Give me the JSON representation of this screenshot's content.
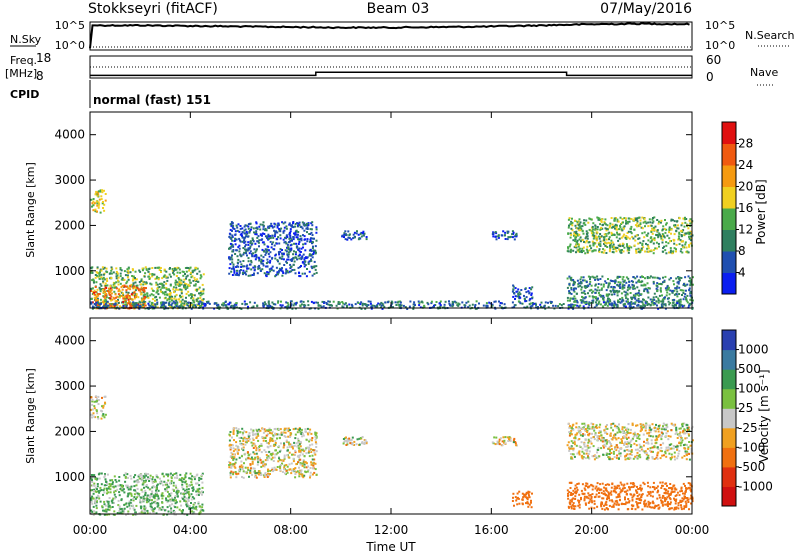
{
  "header": {
    "station": "Stokkseyri (fitACF)",
    "beam": "Beam 03",
    "date": "07/May/2016"
  },
  "side_labels": {
    "nsky": "N.Sky",
    "nsearch": "N.Search",
    "freq_line1": "Freq.",
    "freq_line2": "[MHz]",
    "nave": "Nave",
    "cpid": "CPID",
    "nsky_top_tick": "10^5",
    "nsky_bottom_tick": "10^0",
    "nsearch_top_tick": "10^5",
    "nsearch_bottom_tick": "10^0",
    "freq_top_tick": "18",
    "freq_bottom_tick": "8",
    "nave_top_tick": "60",
    "nave_bottom_tick": "0"
  },
  "cpid_text": "normal (fast) 151",
  "xaxis": {
    "label": "Time UT",
    "ticks": [
      "00:00",
      "04:00",
      "08:00",
      "12:00",
      "16:00",
      "20:00",
      "00:00"
    ]
  },
  "yaxis": {
    "label": "Slant Range [km]",
    "ticks": [
      "1000",
      "2000",
      "3000",
      "4000"
    ]
  },
  "power_colorbar": {
    "label": "Power [dB]",
    "ticks": [
      "4",
      "8",
      "12",
      "16",
      "20",
      "24",
      "28"
    ],
    "colors": [
      "#0a1ef0",
      "#1f4fb0",
      "#2f7f5f",
      "#4aaa4a",
      "#f0d020",
      "#f59a10",
      "#f05a10",
      "#e01010"
    ]
  },
  "velocity_colorbar": {
    "label": "Velocity [m s⁻¹]",
    "ticks": [
      "1000",
      "500",
      "100",
      "25",
      "-25",
      "-100",
      "-500",
      "-1000"
    ],
    "colors": [
      "#2a40b0",
      "#3a7aa0",
      "#3a9a50",
      "#7ac040",
      "#c8c8c8",
      "#f0a020",
      "#f07010",
      "#e03010",
      "#d01010"
    ]
  },
  "chart_data": [
    {
      "type": "line",
      "title": "N.Sky / N.Search",
      "x_range_hours": [
        0,
        24
      ],
      "series": [
        {
          "name": "N.Sky",
          "style": "solid",
          "x": [
            0,
            0.1,
            2,
            4,
            6,
            8,
            10,
            12,
            14,
            16,
            18,
            20,
            22,
            24
          ],
          "y_log10": [
            0.3,
            4.4,
            4.4,
            4.3,
            4.2,
            4.1,
            4.0,
            4.0,
            4.1,
            4.2,
            4.4,
            4.6,
            4.7,
            4.6
          ]
        },
        {
          "name": "N.Search",
          "style": "dotted",
          "x": [
            0,
            24
          ],
          "y_log10": [
            0,
            0
          ]
        }
      ]
    },
    {
      "type": "line",
      "title": "Freq. [MHz] / Nave",
      "x_range_hours": [
        0,
        24
      ],
      "series": [
        {
          "name": "Freq. [MHz]",
          "style": "solid",
          "x": [
            0,
            9,
            9,
            19,
            19,
            24
          ],
          "y": [
            9.2,
            9.2,
            10.6,
            10.6,
            9.2,
            9.2
          ],
          "ylim": [
            8,
            18
          ]
        },
        {
          "name": "Nave",
          "style": "dotted",
          "x": [
            0,
            24
          ],
          "y": [
            30,
            30
          ],
          "ylim": [
            0,
            60
          ]
        }
      ]
    },
    {
      "type": "heatmap",
      "title": "Power [dB]",
      "x_unit": "hours UT",
      "y_unit": "slant range km",
      "xlim": [
        0,
        24
      ],
      "ylim": [
        180,
        4500
      ],
      "regions": [
        {
          "x": [
            0,
            4.5
          ],
          "y": [
            180,
            1100
          ],
          "value_db": 14
        },
        {
          "x": [
            0,
            2.2
          ],
          "y": [
            180,
            700
          ],
          "value_db": 24
        },
        {
          "x": [
            0,
            0.6
          ],
          "y": [
            2300,
            2800
          ],
          "value_db": 18
        },
        {
          "x": [
            5.5,
            9.0
          ],
          "y": [
            900,
            2100
          ],
          "value_db": 6
        },
        {
          "x": [
            10,
            11
          ],
          "y": [
            1700,
            1900
          ],
          "value_db": 6
        },
        {
          "x": [
            16,
            17
          ],
          "y": [
            1700,
            1900
          ],
          "value_db": 6
        },
        {
          "x": [
            16.8,
            17.6
          ],
          "y": [
            350,
            700
          ],
          "value_db": 6
        },
        {
          "x": [
            19,
            24
          ],
          "y": [
            1400,
            2200
          ],
          "value_db": 14
        },
        {
          "x": [
            19,
            24
          ],
          "y": [
            250,
            900
          ],
          "value_db": 10
        },
        {
          "x": [
            0,
            24
          ],
          "y": [
            180,
            350
          ],
          "value_db": 8
        }
      ]
    },
    {
      "type": "heatmap",
      "title": "Velocity [m s⁻¹]",
      "x_unit": "hours UT",
      "y_unit": "slant range km",
      "xlim": [
        0,
        24
      ],
      "ylim": [
        180,
        4500
      ],
      "regions": [
        {
          "x": [
            0,
            4.5
          ],
          "y": [
            180,
            1100
          ],
          "value": 60
        },
        {
          "x": [
            0,
            0.6
          ],
          "y": [
            2300,
            2800
          ],
          "value": 0
        },
        {
          "x": [
            5.5,
            9.0
          ],
          "y": [
            1000,
            2100
          ],
          "value": 0
        },
        {
          "x": [
            10,
            11
          ],
          "y": [
            1700,
            1900
          ],
          "value": 0
        },
        {
          "x": [
            16,
            17
          ],
          "y": [
            1700,
            1900
          ],
          "value": 0
        },
        {
          "x": [
            16.8,
            17.6
          ],
          "y": [
            350,
            700
          ],
          "value": -200
        },
        {
          "x": [
            19,
            24
          ],
          "y": [
            1400,
            2200
          ],
          "value": 0
        },
        {
          "x": [
            19,
            24
          ],
          "y": [
            300,
            900
          ],
          "value": -150
        }
      ]
    }
  ]
}
